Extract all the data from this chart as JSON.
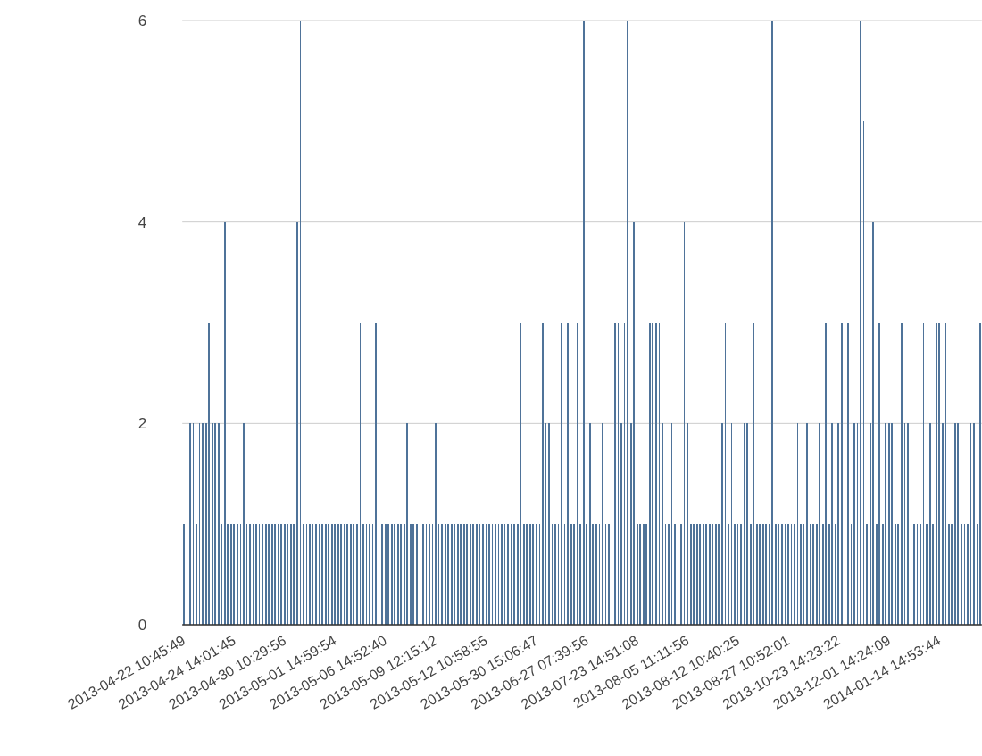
{
  "chart_data": {
    "type": "bar",
    "color": "#4f7399",
    "ylim": [
      0,
      6
    ],
    "yticks": [
      0,
      2,
      4,
      6
    ],
    "grid": "y",
    "categories": [
      "2013-04-22 10:45:49",
      null,
      null,
      null,
      null,
      null,
      null,
      null,
      null,
      null,
      null,
      null,
      null,
      null,
      null,
      null,
      "2013-04-24 14:01:45",
      null,
      null,
      null,
      null,
      null,
      null,
      null,
      null,
      null,
      null,
      null,
      null,
      null,
      null,
      null,
      "2013-04-30 10:29:56",
      null,
      null,
      null,
      null,
      null,
      null,
      null,
      null,
      null,
      null,
      null,
      null,
      null,
      null,
      null,
      "2013-05-01 14:59:54",
      null,
      null,
      null,
      null,
      null,
      null,
      null,
      null,
      null,
      null,
      null,
      null,
      null,
      null,
      null,
      "2013-05-06 14:52:40",
      null,
      null,
      null,
      null,
      null,
      null,
      null,
      null,
      null,
      null,
      null,
      null,
      null,
      null,
      null,
      "2013-05-09 12:15:12",
      null,
      null,
      null,
      null,
      null,
      null,
      null,
      null,
      null,
      null,
      null,
      null,
      null,
      null,
      null,
      "2013-05-12 10:58:55",
      null,
      null,
      null,
      null,
      null,
      null,
      null,
      null,
      null,
      null,
      null,
      null,
      null,
      null,
      null,
      "2013-05-30 15:06:47",
      null,
      null,
      null,
      null,
      null,
      null,
      null,
      null,
      null,
      null,
      null,
      null,
      null,
      null,
      null,
      "2013-06-27 07:39:56",
      null,
      null,
      null,
      null,
      null,
      null,
      null,
      null,
      null,
      null,
      null,
      null,
      null,
      null,
      null,
      "2013-07-23 14:51:08",
      null,
      null,
      null,
      null,
      null,
      null,
      null,
      null,
      null,
      null,
      null,
      null,
      null,
      null,
      null,
      "2013-08-05 11:11:56",
      null,
      null,
      null,
      null,
      null,
      null,
      null,
      null,
      null,
      null,
      null,
      null,
      null,
      null,
      null,
      "2013-08-12 10:40:25",
      null,
      null,
      null,
      null,
      null,
      null,
      null,
      null,
      null,
      null,
      null,
      null,
      null,
      null,
      null,
      "2013-08-27 10:52:01",
      null,
      null,
      null,
      null,
      null,
      null,
      null,
      null,
      null,
      null,
      null,
      null,
      null,
      null,
      null,
      "2013-10-23 14:23:22",
      null,
      null,
      null,
      null,
      null,
      null,
      null,
      null,
      null,
      null,
      null,
      null,
      null,
      null,
      null,
      "2013-12-01 14:24:09",
      null,
      null,
      null,
      null,
      null,
      null,
      null,
      null,
      null,
      null,
      null,
      null,
      null,
      null,
      null,
      "2014-01-14 14:53:44",
      null,
      null,
      null,
      null,
      null,
      null,
      null,
      null,
      null,
      null,
      null,
      null,
      null
    ],
    "values": [
      1,
      2,
      2,
      2,
      1,
      2,
      2,
      2,
      3,
      2,
      2,
      2,
      1,
      4,
      1,
      1,
      1,
      1,
      1,
      2,
      1,
      1,
      1,
      1,
      1,
      1,
      1,
      1,
      1,
      1,
      1,
      1,
      1,
      1,
      1,
      1,
      4,
      6,
      1,
      1,
      1,
      1,
      1,
      1,
      1,
      1,
      1,
      1,
      1,
      1,
      1,
      1,
      1,
      1,
      1,
      1,
      3,
      1,
      1,
      1,
      1,
      3,
      1,
      1,
      1,
      1,
      1,
      1,
      1,
      1,
      1,
      2,
      1,
      1,
      1,
      1,
      1,
      1,
      1,
      1,
      2,
      1,
      1,
      1,
      1,
      1,
      1,
      1,
      1,
      1,
      1,
      1,
      1,
      1,
      1,
      1,
      1,
      1,
      1,
      1,
      1,
      1,
      1,
      1,
      1,
      1,
      1,
      3,
      1,
      1,
      1,
      1,
      1,
      1,
      3,
      2,
      2,
      1,
      1,
      1,
      3,
      1,
      3,
      1,
      1,
      3,
      1,
      6,
      1,
      2,
      1,
      1,
      1,
      2,
      1,
      1,
      2,
      3,
      3,
      2,
      3,
      6,
      2,
      4,
      1,
      1,
      1,
      1,
      3,
      3,
      3,
      3,
      2,
      1,
      1,
      2,
      1,
      1,
      1,
      4,
      2,
      1,
      1,
      1,
      1,
      1,
      1,
      1,
      1,
      1,
      1,
      2,
      3,
      1,
      2,
      1,
      1,
      1,
      2,
      2,
      1,
      3,
      1,
      1,
      1,
      1,
      1,
      6,
      1,
      1,
      1,
      1,
      1,
      1,
      1,
      2,
      1,
      1,
      2,
      1,
      1,
      1,
      2,
      1,
      3,
      1,
      2,
      1,
      2,
      3,
      3,
      3,
      1,
      2,
      2,
      6,
      5,
      1,
      2,
      4,
      1,
      3,
      1,
      2,
      2,
      2,
      1,
      1,
      3,
      2,
      2,
      1,
      1,
      1,
      1,
      3,
      1,
      2,
      1,
      3,
      3,
      2,
      3,
      1,
      1,
      2,
      2,
      1,
      1,
      1,
      2,
      2,
      1,
      3
    ]
  }
}
